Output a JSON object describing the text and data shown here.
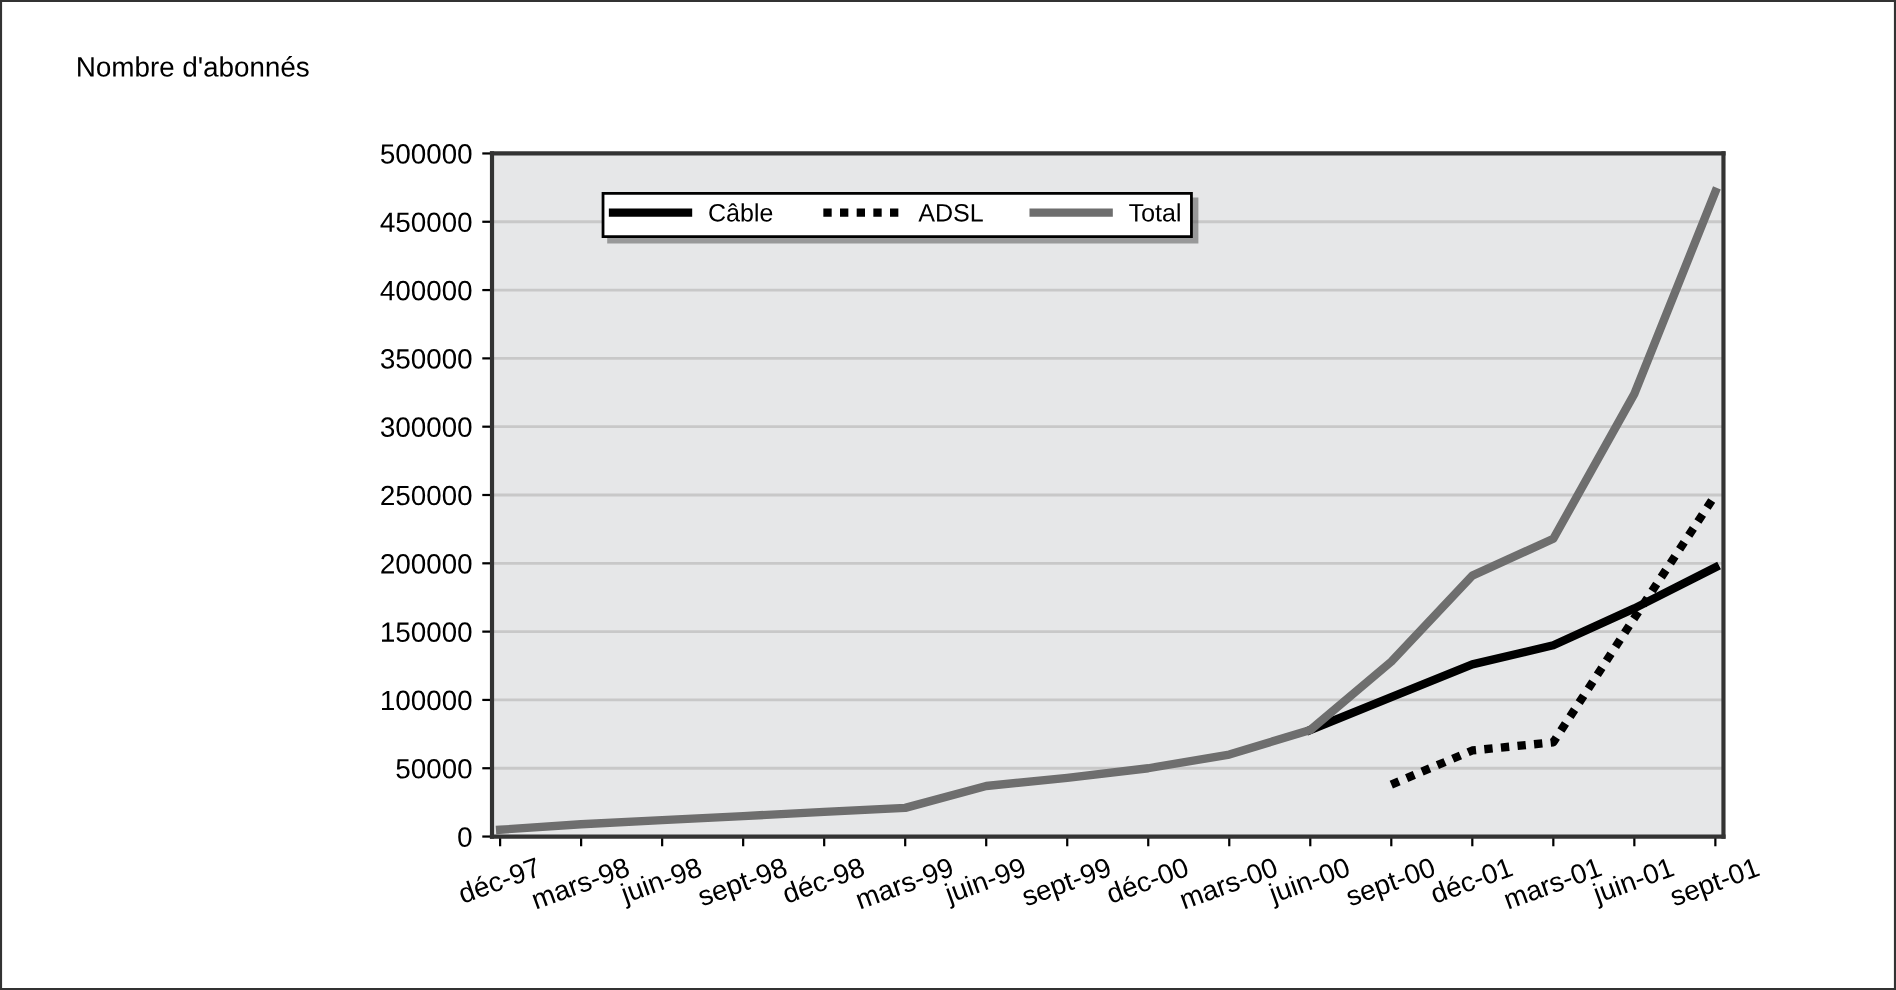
{
  "chart_data": {
    "type": "line",
    "ylabel": "Nombre d'abonnés",
    "categories": [
      "déc-97",
      "mars-98",
      "juin-98",
      "sept-98",
      "déc-98",
      "mars-99",
      "juin-99",
      "sept-99",
      "déc-00",
      "mars-00",
      "juin-00",
      "sept-00",
      "déc-01",
      "mars-01",
      "juin-01",
      "sept-01"
    ],
    "series": [
      {
        "name": "Câble",
        "color": "#000000",
        "line_style": "solid",
        "values": [
          null,
          null,
          null,
          null,
          null,
          null,
          null,
          null,
          null,
          null,
          78000,
          102000,
          126000,
          140000,
          167000,
          197000
        ]
      },
      {
        "name": "ADSL",
        "color": "#000000",
        "line_style": "dotted",
        "values": [
          null,
          null,
          null,
          null,
          null,
          null,
          null,
          null,
          null,
          null,
          null,
          38000,
          63000,
          69000,
          160000,
          250000
        ]
      },
      {
        "name": "Total",
        "color": "#6e6e6e",
        "line_style": "solid",
        "values": [
          5000,
          9000,
          12000,
          15000,
          18000,
          21000,
          37000,
          43000,
          50000,
          60000,
          78000,
          128000,
          191000,
          218000,
          324000,
          472000
        ]
      }
    ],
    "ylim": [
      0,
      500000
    ],
    "yticks": [
      0,
      50000,
      100000,
      150000,
      200000,
      250000,
      300000,
      350000,
      400000,
      450000,
      500000
    ],
    "grid": "y",
    "legend": "top left",
    "marker": "none"
  }
}
